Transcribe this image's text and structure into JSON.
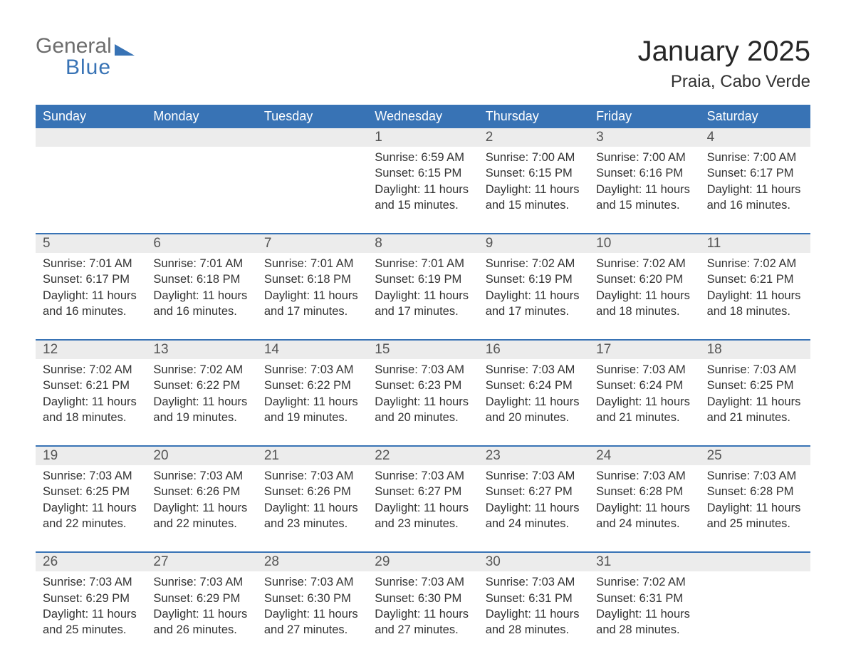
{
  "brand": {
    "word1": "General",
    "word2": "Blue",
    "word1_color": "#6d6d6d",
    "word2_color": "#3873b5",
    "shape_color": "#3873b5"
  },
  "title": "January 2025",
  "location": "Praia, Cabo Verde",
  "colors": {
    "header_bg": "#3873b5",
    "header_text": "#ffffff",
    "daybar_bg": "#ececec",
    "daybar_text": "#555555",
    "body_text": "#333333",
    "row_border": "#3873b5",
    "page_bg": "#ffffff"
  },
  "fonts": {
    "title_size_pt": 30,
    "location_size_pt": 18,
    "weekday_size_pt": 14,
    "daynum_size_pt": 14,
    "body_size_pt": 12
  },
  "weekdays": [
    "Sunday",
    "Monday",
    "Tuesday",
    "Wednesday",
    "Thursday",
    "Friday",
    "Saturday"
  ],
  "labels": {
    "sunrise": "Sunrise:",
    "sunset": "Sunset:",
    "daylight": "Daylight:"
  },
  "weeks": [
    [
      {
        "day": "",
        "sunrise": "",
        "sunset": "",
        "daylight": ""
      },
      {
        "day": "",
        "sunrise": "",
        "sunset": "",
        "daylight": ""
      },
      {
        "day": "",
        "sunrise": "",
        "sunset": "",
        "daylight": ""
      },
      {
        "day": "1",
        "sunrise": "6:59 AM",
        "sunset": "6:15 PM",
        "daylight": "11 hours and 15 minutes."
      },
      {
        "day": "2",
        "sunrise": "7:00 AM",
        "sunset": "6:15 PM",
        "daylight": "11 hours and 15 minutes."
      },
      {
        "day": "3",
        "sunrise": "7:00 AM",
        "sunset": "6:16 PM",
        "daylight": "11 hours and 15 minutes."
      },
      {
        "day": "4",
        "sunrise": "7:00 AM",
        "sunset": "6:17 PM",
        "daylight": "11 hours and 16 minutes."
      }
    ],
    [
      {
        "day": "5",
        "sunrise": "7:01 AM",
        "sunset": "6:17 PM",
        "daylight": "11 hours and 16 minutes."
      },
      {
        "day": "6",
        "sunrise": "7:01 AM",
        "sunset": "6:18 PM",
        "daylight": "11 hours and 16 minutes."
      },
      {
        "day": "7",
        "sunrise": "7:01 AM",
        "sunset": "6:18 PM",
        "daylight": "11 hours and 17 minutes."
      },
      {
        "day": "8",
        "sunrise": "7:01 AM",
        "sunset": "6:19 PM",
        "daylight": "11 hours and 17 minutes."
      },
      {
        "day": "9",
        "sunrise": "7:02 AM",
        "sunset": "6:19 PM",
        "daylight": "11 hours and 17 minutes."
      },
      {
        "day": "10",
        "sunrise": "7:02 AM",
        "sunset": "6:20 PM",
        "daylight": "11 hours and 18 minutes."
      },
      {
        "day": "11",
        "sunrise": "7:02 AM",
        "sunset": "6:21 PM",
        "daylight": "11 hours and 18 minutes."
      }
    ],
    [
      {
        "day": "12",
        "sunrise": "7:02 AM",
        "sunset": "6:21 PM",
        "daylight": "11 hours and 18 minutes."
      },
      {
        "day": "13",
        "sunrise": "7:02 AM",
        "sunset": "6:22 PM",
        "daylight": "11 hours and 19 minutes."
      },
      {
        "day": "14",
        "sunrise": "7:03 AM",
        "sunset": "6:22 PM",
        "daylight": "11 hours and 19 minutes."
      },
      {
        "day": "15",
        "sunrise": "7:03 AM",
        "sunset": "6:23 PM",
        "daylight": "11 hours and 20 minutes."
      },
      {
        "day": "16",
        "sunrise": "7:03 AM",
        "sunset": "6:24 PM",
        "daylight": "11 hours and 20 minutes."
      },
      {
        "day": "17",
        "sunrise": "7:03 AM",
        "sunset": "6:24 PM",
        "daylight": "11 hours and 21 minutes."
      },
      {
        "day": "18",
        "sunrise": "7:03 AM",
        "sunset": "6:25 PM",
        "daylight": "11 hours and 21 minutes."
      }
    ],
    [
      {
        "day": "19",
        "sunrise": "7:03 AM",
        "sunset": "6:25 PM",
        "daylight": "11 hours and 22 minutes."
      },
      {
        "day": "20",
        "sunrise": "7:03 AM",
        "sunset": "6:26 PM",
        "daylight": "11 hours and 22 minutes."
      },
      {
        "day": "21",
        "sunrise": "7:03 AM",
        "sunset": "6:26 PM",
        "daylight": "11 hours and 23 minutes."
      },
      {
        "day": "22",
        "sunrise": "7:03 AM",
        "sunset": "6:27 PM",
        "daylight": "11 hours and 23 minutes."
      },
      {
        "day": "23",
        "sunrise": "7:03 AM",
        "sunset": "6:27 PM",
        "daylight": "11 hours and 24 minutes."
      },
      {
        "day": "24",
        "sunrise": "7:03 AM",
        "sunset": "6:28 PM",
        "daylight": "11 hours and 24 minutes."
      },
      {
        "day": "25",
        "sunrise": "7:03 AM",
        "sunset": "6:28 PM",
        "daylight": "11 hours and 25 minutes."
      }
    ],
    [
      {
        "day": "26",
        "sunrise": "7:03 AM",
        "sunset": "6:29 PM",
        "daylight": "11 hours and 25 minutes."
      },
      {
        "day": "27",
        "sunrise": "7:03 AM",
        "sunset": "6:29 PM",
        "daylight": "11 hours and 26 minutes."
      },
      {
        "day": "28",
        "sunrise": "7:03 AM",
        "sunset": "6:30 PM",
        "daylight": "11 hours and 27 minutes."
      },
      {
        "day": "29",
        "sunrise": "7:03 AM",
        "sunset": "6:30 PM",
        "daylight": "11 hours and 27 minutes."
      },
      {
        "day": "30",
        "sunrise": "7:03 AM",
        "sunset": "6:31 PM",
        "daylight": "11 hours and 28 minutes."
      },
      {
        "day": "31",
        "sunrise": "7:02 AM",
        "sunset": "6:31 PM",
        "daylight": "11 hours and 28 minutes."
      },
      {
        "day": "",
        "sunrise": "",
        "sunset": "",
        "daylight": ""
      }
    ]
  ]
}
